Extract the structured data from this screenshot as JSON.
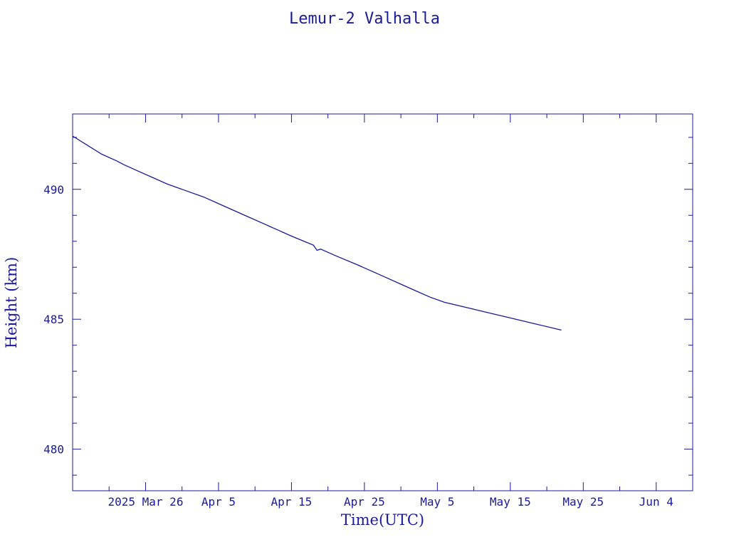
{
  "chart_data": {
    "type": "line",
    "title": "Lemur-2 Valhalla",
    "xlabel": "Time(UTC)",
    "ylabel": "Height (km)",
    "xlim": [
      "2025-03-16",
      "2025-06-09"
    ],
    "ylim": [
      478.4,
      492.9
    ],
    "y_ticks": [
      480,
      485,
      490
    ],
    "x_ticks": [
      {
        "date": "2025-03-26",
        "label": "2025 Mar 26"
      },
      {
        "date": "2025-04-05",
        "label": "Apr  5"
      },
      {
        "date": "2025-04-15",
        "label": "Apr 15"
      },
      {
        "date": "2025-04-25",
        "label": "Apr 25"
      },
      {
        "date": "2025-05-05",
        "label": "May  5"
      },
      {
        "date": "2025-05-15",
        "label": "May 15"
      },
      {
        "date": "2025-05-25",
        "label": "May 25"
      },
      {
        "date": "2025-06-04",
        "label": "Jun  4"
      }
    ],
    "grid": false,
    "series": [
      {
        "color": "#1a1a9c",
        "points": [
          [
            "2025-03-16",
            492.05
          ],
          [
            "2025-03-18",
            491.7
          ],
          [
            "2025-03-20",
            491.35
          ],
          [
            "2025-03-22",
            491.1
          ],
          [
            "2025-03-23",
            490.95
          ],
          [
            "2025-03-25",
            490.7
          ],
          [
            "2025-03-27",
            490.45
          ],
          [
            "2025-03-29",
            490.2
          ],
          [
            "2025-03-31",
            490.0
          ],
          [
            "2025-04-03",
            489.7
          ],
          [
            "2025-04-05",
            489.45
          ],
          [
            "2025-04-07",
            489.2
          ],
          [
            "2025-04-09",
            488.95
          ],
          [
            "2025-04-11",
            488.7
          ],
          [
            "2025-04-13",
            488.45
          ],
          [
            "2025-04-15",
            488.2
          ],
          [
            "2025-04-18",
            487.85
          ],
          [
            "2025-04-18T12:00",
            487.65
          ],
          [
            "2025-04-19",
            487.7
          ],
          [
            "2025-04-21",
            487.45
          ],
          [
            "2025-04-24",
            487.1
          ],
          [
            "2025-04-26",
            486.85
          ],
          [
            "2025-04-28",
            486.6
          ],
          [
            "2025-04-30",
            486.35
          ],
          [
            "2025-05-02",
            486.1
          ],
          [
            "2025-05-04",
            485.85
          ],
          [
            "2025-05-06",
            485.65
          ],
          [
            "2025-05-09",
            485.45
          ],
          [
            "2025-05-12",
            485.25
          ],
          [
            "2025-05-15",
            485.05
          ],
          [
            "2025-05-18",
            484.85
          ],
          [
            "2025-05-21",
            484.65
          ],
          [
            "2025-05-22",
            484.58
          ]
        ]
      }
    ]
  }
}
